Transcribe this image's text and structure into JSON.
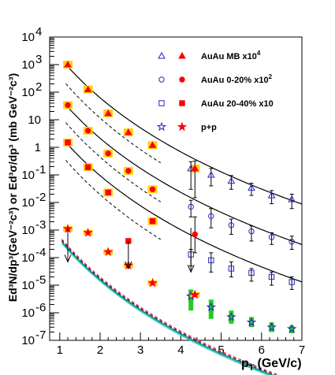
{
  "chart_data": {
    "type": "scatter",
    "xlabel": "p",
    "xlabel_sub": "T",
    "xlabel_unit": "(GeV/c)",
    "ylabel": "Ed³N/dp³(GeV⁻²c³) or Ed³σ/dp³ (mb GeV⁻²c³)",
    "xlim": [
      0.75,
      7.0
    ],
    "ylim_log10": [
      -7,
      4
    ],
    "ylog": true,
    "x_ticks": [
      1,
      2,
      3,
      4,
      5,
      6,
      7
    ],
    "x_tick_labels": [
      "1",
      "2",
      "3",
      "4",
      "5",
      "6",
      "7"
    ],
    "y_ticks_log10": [
      -7,
      -6,
      -5,
      -4,
      -3,
      -2,
      -1,
      0,
      1,
      2,
      3,
      4
    ],
    "y_tick_labels": [
      {
        "base": "10",
        "exp": "-7"
      },
      {
        "base": "10",
        "exp": "-6"
      },
      {
        "base": "10",
        "exp": "-5"
      },
      {
        "base": "10",
        "exp": "-4"
      },
      {
        "base": "10",
        "exp": "-3"
      },
      {
        "base": "10",
        "exp": "-2"
      },
      {
        "base": "10",
        "exp": "-1"
      },
      {
        "base": "1",
        "exp": ""
      },
      {
        "base": "10",
        "exp": ""
      },
      {
        "base": "10",
        "exp": "2"
      },
      {
        "base": "10",
        "exp": "3"
      },
      {
        "base": "10",
        "exp": "4"
      }
    ],
    "legend": [
      {
        "label": "AuAu MB x10",
        "sup": "4",
        "open": "triangle",
        "filled": "triangle",
        "color": "#2222cc",
        "fill_color": "#ff0000"
      },
      {
        "label": "AuAu 0-20% x10",
        "sup": "2",
        "open": "circle",
        "filled": "circle",
        "color": "#2222cc",
        "fill_color": "#ff0000"
      },
      {
        "label": "AuAu 20-40% x10",
        "sup": "",
        "open": "square",
        "filled": "square",
        "color": "#2222cc",
        "fill_color": "#ff0000"
      },
      {
        "label": "p+p",
        "sup": "",
        "open": "star",
        "filled": "star",
        "color": "#2222cc",
        "fill_color": "#ff0000"
      }
    ],
    "colors": {
      "open": "#2222cc",
      "filled": "#ff0000",
      "syst_box": "#ffd21a",
      "pp_box": "#22cc22",
      "fit": "#000000"
    },
    "series": [
      {
        "name": "AuAu MB x10^4",
        "marker": "triangle",
        "filled_points": [
          {
            "x": 1.2,
            "y": 1000,
            "box": true
          },
          {
            "x": 1.7,
            "y": 125,
            "box": true
          },
          {
            "x": 2.2,
            "y": 17,
            "box": true
          },
          {
            "x": 2.7,
            "y": 3.5,
            "box": true
          },
          {
            "x": 3.3,
            "y": 1.2,
            "box": true
          },
          {
            "x": 4.35,
            "y": 0.17,
            "box": true,
            "err": [
              0.015,
              0.32
            ]
          }
        ],
        "open_points": [
          {
            "x": 4.25,
            "y": 0.17,
            "err": [
              0.03,
              0.3
            ]
          },
          {
            "x": 4.75,
            "y": 0.1,
            "err": [
              0.04,
              0.17
            ]
          },
          {
            "x": 5.25,
            "y": 0.06,
            "err": [
              0.03,
              0.095
            ]
          },
          {
            "x": 5.75,
            "y": 0.034,
            "err": [
              0.018,
              0.05
            ]
          },
          {
            "x": 6.25,
            "y": 0.018,
            "err": [
              0.009,
              0.027
            ]
          },
          {
            "x": 6.75,
            "y": 0.013,
            "err": [
              0.006,
              0.02
            ]
          }
        ],
        "fit": {
          "A": 300000.0,
          "p0": 1.5,
          "n": 10
        }
      },
      {
        "name": "AuAu 0-20% x10^2",
        "marker": "circle",
        "filled_points": [
          {
            "x": 1.2,
            "y": 34,
            "box": true
          },
          {
            "x": 1.7,
            "y": 4,
            "box": true
          },
          {
            "x": 2.2,
            "y": 0.6,
            "box": true
          },
          {
            "x": 2.7,
            "y": 0.14,
            "box": true
          },
          {
            "x": 3.3,
            "y": 0.03,
            "box": true
          },
          {
            "x": 4.35,
            "y": 0.0007,
            "box": false,
            "err": [
              0.00015,
              0.003
            ]
          }
        ],
        "open_points": [
          {
            "x": 4.25,
            "y": 0.007,
            "err": [
              0.003,
              0.012
            ]
          },
          {
            "x": 4.75,
            "y": 0.0032,
            "err": [
              0.0012,
              0.006
            ]
          },
          {
            "x": 5.25,
            "y": 0.0015,
            "err": [
              0.0007,
              0.0025
            ]
          },
          {
            "x": 5.75,
            "y": 0.0009,
            "err": [
              0.0004,
              0.0014
            ]
          },
          {
            "x": 6.25,
            "y": 0.00055,
            "err": [
              0.0003,
              0.0008
            ]
          },
          {
            "x": 6.75,
            "y": 0.00038,
            "err": [
              0.0002,
              0.0006
            ]
          }
        ],
        "fit": {
          "A": 10200.0,
          "p0": 1.5,
          "n": 10
        }
      },
      {
        "name": "AuAu 20-40% x10",
        "marker": "square",
        "filled_points": [
          {
            "x": 1.2,
            "y": 1.5,
            "box": true
          },
          {
            "x": 1.7,
            "y": 0.19,
            "box": true
          },
          {
            "x": 2.2,
            "y": 0.023,
            "box": true
          },
          {
            "x": 2.7,
            "y": 0.0004,
            "box": false
          },
          {
            "x": 3.3,
            "y": 0.0021,
            "box": true
          }
        ],
        "open_points": [
          {
            "x": 4.25,
            "y": 0.00013,
            "err": [
              5e-05,
              0.0002
            ]
          },
          {
            "x": 4.75,
            "y": 8e-05,
            "err": [
              3e-05,
              0.00015
            ]
          },
          {
            "x": 5.25,
            "y": 4e-05,
            "err": [
              2e-05,
              7e-05
            ]
          },
          {
            "x": 5.75,
            "y": 2.8e-05,
            "err": [
              1.4e-05,
              4e-05
            ]
          },
          {
            "x": 6.25,
            "y": 2e-05,
            "err": [
              1e-05,
              3e-05
            ]
          },
          {
            "x": 6.75,
            "y": 1.3e-05,
            "err": [
              7e-06,
              2e-05
            ]
          }
        ],
        "fit": {
          "A": 450,
          "p0": 1.5,
          "n": 10
        }
      },
      {
        "name": "p+p",
        "marker": "star",
        "filled_points": [
          {
            "x": 1.2,
            "y": 0.0011,
            "box": true
          },
          {
            "x": 1.7,
            "y": 0.0008,
            "box": true
          },
          {
            "x": 2.2,
            "y": 0.00016,
            "box": true
          },
          {
            "x": 2.7,
            "y": 5.2e-05,
            "box": true
          },
          {
            "x": 3.3,
            "y": 1.2e-05,
            "box": true
          },
          {
            "x": 4.35,
            "y": 4.5e-06,
            "box": true
          }
        ],
        "open_points": [
          {
            "x": 4.25,
            "y": 4e-06,
            "green_box": [
              1.2e-06,
              7e-06
            ]
          },
          {
            "x": 4.75,
            "y": 1.6e-06,
            "green_box": [
              6e-07,
              3e-06
            ]
          },
          {
            "x": 5.25,
            "y": 7e-07,
            "green_box": [
              4e-07,
              1.2e-06
            ]
          },
          {
            "x": 5.75,
            "y": 4.5e-07,
            "green_box": [
              3e-07,
              7e-07
            ]
          },
          {
            "x": 6.25,
            "y": 3e-07,
            "green_box": [
              2e-07,
              4.5e-07
            ]
          },
          {
            "x": 6.75,
            "y": 2.6e-07,
            "green_box": [
              1.8e-07,
              3.5e-07
            ]
          }
        ]
      }
    ],
    "upper_limits": [
      {
        "x": 1.2,
        "y_top": 0.0011,
        "y_bottom": 7e-05
      },
      {
        "x": 2.7,
        "y_top": 0.0004,
        "y_bottom": 4e-05
      },
      {
        "x": 4.25,
        "y_top": 0.0012,
        "y_bottom": 3e-05
      }
    ],
    "dashed_curves": [
      {
        "A": 60000.0,
        "p0": 1.7,
        "n": 11
      },
      {
        "A": 2300.0,
        "p0": 1.7,
        "n": 11
      },
      {
        "A": 100.0,
        "p0": 1.7,
        "n": 11
      }
    ],
    "pp_bands": [
      {
        "A": 0.095,
        "p0": 1.5,
        "n": 10,
        "color": "#ff0000",
        "dash": "4,3"
      },
      {
        "A": 0.085,
        "p0": 1.5,
        "n": 10,
        "color": "#000000",
        "dash": "4,3"
      },
      {
        "A": 0.078,
        "p0": 1.5,
        "n": 10,
        "color": "#2255dd",
        "dash": ""
      },
      {
        "A": 0.072,
        "p0": 1.5,
        "n": 10,
        "color": "#00bb44",
        "dash": ""
      },
      {
        "A": 0.066,
        "p0": 1.5,
        "n": 10,
        "color": "#22cccc",
        "dash": ""
      }
    ]
  }
}
